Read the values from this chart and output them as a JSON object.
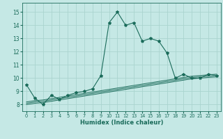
{
  "title": "",
  "xlabel": "Humidex (Indice chaleur)",
  "ylabel": "",
  "background_color": "#c5e8e5",
  "grid_color": "#aad4cf",
  "line_color": "#1a6b5a",
  "xlim": [
    -0.5,
    23.5
  ],
  "ylim": [
    7.5,
    15.7
  ],
  "yticks": [
    8,
    9,
    10,
    11,
    12,
    13,
    14,
    15
  ],
  "xticks": [
    0,
    1,
    2,
    3,
    4,
    5,
    6,
    7,
    8,
    9,
    10,
    11,
    12,
    13,
    14,
    15,
    16,
    17,
    18,
    19,
    20,
    21,
    22,
    23
  ],
  "main_series": {
    "x": [
      0,
      1,
      2,
      3,
      4,
      5,
      6,
      7,
      8,
      9,
      10,
      11,
      12,
      13,
      14,
      15,
      16,
      17,
      18,
      19,
      20,
      21,
      22,
      23
    ],
    "y": [
      9.5,
      8.5,
      8.0,
      8.7,
      8.4,
      8.7,
      8.9,
      9.0,
      9.2,
      10.2,
      14.2,
      15.0,
      14.0,
      14.2,
      12.8,
      13.0,
      12.8,
      11.9,
      10.0,
      10.3,
      10.0,
      10.0,
      10.3,
      10.2
    ]
  },
  "flat_series": [
    {
      "x": [
        0,
        1,
        2,
        3,
        4,
        5,
        6,
        7,
        8,
        9,
        10,
        11,
        12,
        13,
        14,
        15,
        16,
        17,
        18,
        19,
        20,
        21,
        22,
        23
      ],
      "y": [
        8.0,
        8.1,
        8.15,
        8.25,
        8.35,
        8.45,
        8.55,
        8.65,
        8.75,
        8.85,
        8.95,
        9.05,
        9.15,
        9.25,
        9.35,
        9.45,
        9.55,
        9.65,
        9.75,
        9.85,
        9.95,
        10.0,
        10.05,
        10.1
      ]
    },
    {
      "x": [
        0,
        1,
        2,
        3,
        4,
        5,
        6,
        7,
        8,
        9,
        10,
        11,
        12,
        13,
        14,
        15,
        16,
        17,
        18,
        19,
        20,
        21,
        22,
        23
      ],
      "y": [
        8.1,
        8.2,
        8.25,
        8.35,
        8.45,
        8.55,
        8.65,
        8.75,
        8.85,
        8.95,
        9.05,
        9.15,
        9.25,
        9.35,
        9.45,
        9.55,
        9.65,
        9.75,
        9.85,
        9.95,
        10.05,
        10.1,
        10.15,
        10.2
      ]
    },
    {
      "x": [
        0,
        1,
        2,
        3,
        4,
        5,
        6,
        7,
        8,
        9,
        10,
        11,
        12,
        13,
        14,
        15,
        16,
        17,
        18,
        19,
        20,
        21,
        22,
        23
      ],
      "y": [
        8.2,
        8.3,
        8.35,
        8.45,
        8.55,
        8.65,
        8.75,
        8.85,
        8.95,
        9.05,
        9.15,
        9.25,
        9.35,
        9.45,
        9.55,
        9.65,
        9.75,
        9.85,
        9.95,
        10.05,
        10.15,
        10.2,
        10.25,
        10.3
      ]
    }
  ],
  "xlabel_fontsize": 6.0,
  "xlabel_fontweight": "bold",
  "xtick_fontsize": 4.8,
  "ytick_fontsize": 5.5,
  "marker": "*",
  "markersize": 3.0,
  "linewidth": 0.8,
  "flat_linewidth": 0.7
}
